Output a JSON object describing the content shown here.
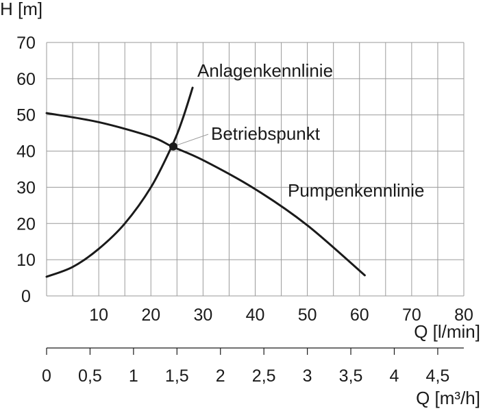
{
  "chart_data": {
    "type": "line",
    "ylabel": "H [m]",
    "xlabel": "Q [l/min]",
    "x2label": "Q [m³/h]",
    "xlim": [
      0,
      80
    ],
    "ylim": [
      0,
      70
    ],
    "x2lim": [
      0,
      4.8
    ],
    "grid": true,
    "yticks": [
      "0",
      "10",
      "20",
      "30",
      "40",
      "50",
      "60",
      "70"
    ],
    "xticks": [
      "10",
      "20",
      "30",
      "40",
      "50",
      "60",
      "70",
      "80"
    ],
    "x2ticks": [
      "0",
      "0,5",
      "1",
      "1,5",
      "2",
      "2,5",
      "3",
      "3,5",
      "4",
      "4,5"
    ],
    "series": [
      {
        "name": "Pumpenkennlinie",
        "x": [
          0,
          10,
          20,
          24,
          30,
          40,
          50,
          61
        ],
        "y": [
          50.5,
          48,
          44,
          41.3,
          37.5,
          29.5,
          19.5,
          5.7
        ]
      },
      {
        "name": "Anlagenkennlinie",
        "x": [
          0,
          5,
          10,
          15,
          20,
          24,
          26,
          28
        ],
        "y": [
          5.3,
          8,
          13,
          20,
          30,
          41.3,
          48.5,
          57.5
        ]
      }
    ],
    "annotations": [
      {
        "text": "Betriebspunkt",
        "x": 24.3,
        "y": 41.3
      }
    ]
  }
}
